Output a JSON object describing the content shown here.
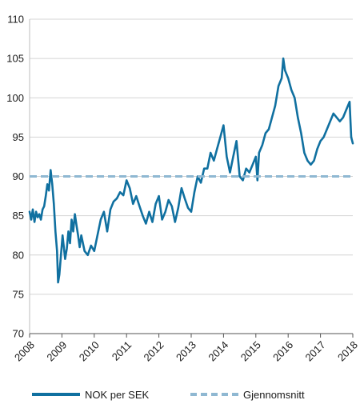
{
  "chart_data": {
    "type": "line",
    "title": "",
    "xlabel": "",
    "ylabel": "",
    "xlim": [
      2008,
      2018
    ],
    "ylim": [
      70,
      110
    ],
    "y_ticks": [
      "70",
      "75",
      "80",
      "85",
      "90",
      "95",
      "100",
      "105",
      "110"
    ],
    "x_ticks": [
      "2008",
      "2009",
      "2010",
      "2011",
      "2012",
      "2013",
      "2014",
      "2015",
      "2016",
      "2017",
      "2018"
    ],
    "grid": "horizontal",
    "legend": "bottom",
    "series": [
      {
        "name": "NOK per SEK",
        "color": "#1070a0",
        "style": "solid",
        "x": [
          2008.0,
          2008.05,
          2008.1,
          2008.15,
          2008.2,
          2008.25,
          2008.3,
          2008.35,
          2008.4,
          2008.45,
          2008.5,
          2008.55,
          2008.6,
          2008.65,
          2008.7,
          2008.75,
          2008.8,
          2008.85,
          2008.88,
          2008.92,
          2008.95,
          2008.98,
          2009.02,
          2009.06,
          2009.1,
          2009.15,
          2009.2,
          2009.25,
          2009.3,
          2009.35,
          2009.4,
          2009.45,
          2009.5,
          2009.55,
          2009.6,
          2009.7,
          2009.8,
          2009.9,
          2010.0,
          2010.1,
          2010.2,
          2010.3,
          2010.4,
          2010.5,
          2010.6,
          2010.7,
          2010.8,
          2010.9,
          2011.0,
          2011.1,
          2011.2,
          2011.3,
          2011.4,
          2011.5,
          2011.6,
          2011.7,
          2011.8,
          2011.9,
          2012.0,
          2012.1,
          2012.2,
          2012.3,
          2012.4,
          2012.5,
          2012.6,
          2012.7,
          2012.8,
          2012.9,
          2013.0,
          2013.1,
          2013.2,
          2013.3,
          2013.4,
          2013.5,
          2013.6,
          2013.7,
          2013.8,
          2013.9,
          2014.0,
          2014.1,
          2014.2,
          2014.3,
          2014.4,
          2014.5,
          2014.6,
          2014.7,
          2014.8,
          2014.9,
          2015.0,
          2015.05,
          2015.1,
          2015.2,
          2015.3,
          2015.4,
          2015.5,
          2015.6,
          2015.7,
          2015.8,
          2015.85,
          2015.9,
          2016.0,
          2016.1,
          2016.2,
          2016.3,
          2016.4,
          2016.5,
          2016.6,
          2016.7,
          2016.8,
          2016.9,
          2017.0,
          2017.1,
          2017.2,
          2017.3,
          2017.4,
          2017.5,
          2017.6,
          2017.7,
          2017.8,
          2017.9,
          2017.95,
          2018.0
        ],
        "values": [
          85.5,
          84.5,
          85.8,
          84.2,
          85.5,
          84.8,
          85.2,
          84.5,
          85.8,
          86.2,
          87.5,
          89.0,
          88.2,
          90.8,
          89.0,
          86.5,
          83.0,
          80.5,
          76.5,
          77.5,
          79.0,
          80.5,
          82.5,
          81.0,
          79.5,
          80.8,
          83.0,
          81.5,
          84.5,
          83.0,
          85.2,
          83.8,
          82.5,
          81.0,
          82.5,
          80.5,
          80.0,
          81.2,
          80.5,
          82.5,
          84.5,
          85.5,
          83.0,
          85.8,
          86.8,
          87.2,
          88.0,
          87.6,
          89.5,
          88.5,
          86.5,
          87.5,
          86.2,
          85.0,
          84.0,
          85.5,
          84.2,
          86.5,
          87.5,
          84.5,
          85.5,
          87.0,
          86.2,
          84.2,
          86.0,
          88.5,
          87.2,
          86.0,
          85.5,
          88.0,
          90.0,
          89.2,
          91.0,
          91.0,
          93.0,
          92.0,
          93.5,
          95.0,
          96.5,
          92.5,
          90.5,
          92.5,
          94.5,
          90.0,
          89.5,
          91.0,
          90.5,
          91.5,
          92.5,
          89.5,
          93.0,
          94.0,
          95.5,
          96.0,
          97.5,
          99.0,
          101.5,
          102.5,
          105.0,
          103.5,
          102.5,
          101.0,
          100.0,
          97.5,
          95.5,
          93.0,
          92.0,
          91.5,
          92.0,
          93.5,
          94.5,
          95.0,
          96.0,
          97.0,
          98.0,
          97.5,
          97.0,
          97.5,
          98.5,
          99.5,
          95.0,
          94.2
        ]
      },
      {
        "name": "Gjennomsnitt",
        "color": "#8fb8d2",
        "style": "dashed",
        "x": [
          2008.0,
          2018.0
        ],
        "values": [
          90.0,
          90.0
        ]
      }
    ]
  }
}
